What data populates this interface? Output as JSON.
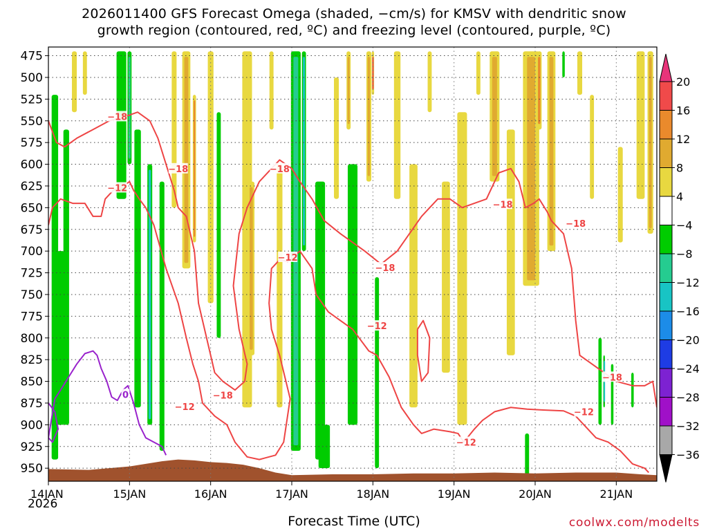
{
  "header": {
    "title_line1": "2026011400 GFS Forecast Omega (shaded, −cm/s) for KMSV with dendritic snow",
    "title_line2": "growth region (contoured, red, ºC) and freezing level (contoured, purple, ºC)"
  },
  "footer": {
    "credit": "coolwx.com/modelts"
  },
  "chart_data": {
    "type": "heatmap",
    "title": "2026011400 GFS Forecast Omega (shaded, −cm/s) for KMSV with dendritic snow growth region (contoured, red, ºC) and freezing level (contoured, purple, ºC)",
    "xlabel": "Forecast Time (UTC)",
    "ylabel": "",
    "x_ticks": [
      "14JAN",
      "15JAN",
      "16JAN",
      "17JAN",
      "18JAN",
      "19JAN",
      "20JAN",
      "21JAN"
    ],
    "x_year": "2026",
    "x_range_days": [
      0,
      7.5
    ],
    "y_ticks": [
      475,
      500,
      525,
      550,
      575,
      600,
      625,
      650,
      675,
      700,
      725,
      750,
      775,
      800,
      825,
      850,
      875,
      900,
      925,
      950
    ],
    "y_range": [
      465,
      965
    ],
    "y_inverted": true,
    "grid": true,
    "colorbar": {
      "labels": [
        "20",
        "16",
        "12",
        "8",
        "4",
        "−4",
        "−8",
        "−12",
        "−16",
        "−20",
        "−24",
        "−28",
        "−32",
        "−36"
      ],
      "levels": [
        20,
        16,
        12,
        8,
        4,
        -4,
        -8,
        -12,
        -16,
        -20,
        -24,
        -28,
        -32,
        -36
      ],
      "colors": [
        "#e8347a",
        "#f04a4a",
        "#ea8a2c",
        "#e0aa30",
        "#e8d840",
        "#ffffff",
        "#00cc00",
        "#25cc90",
        "#18c4c4",
        "#1c8ce8",
        "#1e3ce4",
        "#7d22d2",
        "#a010c8",
        "#a8a8a8",
        "#000000"
      ]
    },
    "omega_fields": [
      {
        "t": 0.32,
        "p_top": 470,
        "p_bot": 540,
        "v": 5,
        "w": 0.06
      },
      {
        "t": 0.45,
        "p_top": 470,
        "p_bot": 520,
        "v": 6,
        "w": 0.05
      },
      {
        "t": 0.15,
        "p_top": 700,
        "p_bot": 900,
        "v": -5,
        "w": 0.1
      },
      {
        "t": 0.08,
        "p_top": 520,
        "p_bot": 940,
        "v": -7,
        "w": 0.08
      },
      {
        "t": 0.22,
        "p_top": 560,
        "p_bot": 900,
        "v": -6,
        "w": 0.07
      },
      {
        "t": 0.9,
        "p_top": 470,
        "p_bot": 640,
        "v": -6,
        "w": 0.12
      },
      {
        "t": 1.0,
        "p_top": 470,
        "p_bot": 600,
        "v": -12,
        "w": 0.05
      },
      {
        "t": 1.1,
        "p_top": 560,
        "p_bot": 880,
        "v": -8,
        "w": 0.08
      },
      {
        "t": 1.25,
        "p_top": 600,
        "p_bot": 900,
        "v": -13,
        "w": 0.06
      },
      {
        "t": 1.4,
        "p_top": 620,
        "p_bot": 930,
        "v": -8,
        "w": 0.06
      },
      {
        "t": 1.55,
        "p_top": 470,
        "p_bot": 650,
        "v": 5,
        "w": 0.06
      },
      {
        "t": 1.7,
        "p_top": 470,
        "p_bot": 720,
        "v": 9,
        "w": 0.1
      },
      {
        "t": 1.8,
        "p_top": 520,
        "p_bot": 690,
        "v": 14,
        "w": 0.04
      },
      {
        "t": 2.0,
        "p_top": 470,
        "p_bot": 760,
        "v": 5,
        "w": 0.07
      },
      {
        "t": 2.1,
        "p_top": 540,
        "p_bot": 800,
        "v": -6,
        "w": 0.05
      },
      {
        "t": 2.45,
        "p_top": 470,
        "p_bot": 880,
        "v": 6,
        "w": 0.12
      },
      {
        "t": 2.5,
        "p_top": 620,
        "p_bot": 820,
        "v": 11,
        "w": 0.08
      },
      {
        "t": 2.75,
        "p_top": 470,
        "p_bot": 560,
        "v": 5,
        "w": 0.05
      },
      {
        "t": 2.85,
        "p_top": 600,
        "p_bot": 880,
        "v": 7,
        "w": 0.07
      },
      {
        "t": 3.05,
        "p_top": 470,
        "p_bot": 930,
        "v": -9,
        "w": 0.12
      },
      {
        "t": 3.15,
        "p_top": 470,
        "p_bot": 700,
        "v": -14,
        "w": 0.05
      },
      {
        "t": 3.35,
        "p_top": 620,
        "p_bot": 940,
        "v": -7,
        "w": 0.12
      },
      {
        "t": 3.55,
        "p_top": 500,
        "p_bot": 640,
        "v": 5,
        "w": 0.06
      },
      {
        "t": 3.7,
        "p_top": 470,
        "p_bot": 560,
        "v": 8,
        "w": 0.05
      },
      {
        "t": 3.75,
        "p_top": 600,
        "p_bot": 900,
        "v": -7,
        "w": 0.12
      },
      {
        "t": 3.95,
        "p_top": 470,
        "p_bot": 620,
        "v": 10,
        "w": 0.06
      },
      {
        "t": 4.0,
        "p_top": 470,
        "p_bot": 520,
        "v": 17,
        "w": 0.03
      },
      {
        "t": 4.05,
        "p_top": 730,
        "p_bot": 950,
        "v": -7,
        "w": 0.05
      },
      {
        "t": 4.3,
        "p_top": 470,
        "p_bot": 640,
        "v": 6,
        "w": 0.08
      },
      {
        "t": 4.5,
        "p_top": 600,
        "p_bot": 880,
        "v": 5,
        "w": 0.1
      },
      {
        "t": 4.7,
        "p_top": 470,
        "p_bot": 540,
        "v": 7,
        "w": 0.05
      },
      {
        "t": 4.9,
        "p_top": 620,
        "p_bot": 840,
        "v": 5,
        "w": 0.1
      },
      {
        "t": 5.1,
        "p_top": 540,
        "p_bot": 900,
        "v": 5,
        "w": 0.12
      },
      {
        "t": 5.3,
        "p_top": 470,
        "p_bot": 520,
        "v": 7,
        "w": 0.05
      },
      {
        "t": 5.5,
        "p_top": 470,
        "p_bot": 620,
        "v": 8,
        "w": 0.12
      },
      {
        "t": 5.7,
        "p_top": 560,
        "p_bot": 820,
        "v": 5,
        "w": 0.1
      },
      {
        "t": 5.95,
        "p_top": 470,
        "p_bot": 740,
        "v": 11,
        "w": 0.2
      },
      {
        "t": 6.05,
        "p_top": 470,
        "p_bot": 560,
        "v": 14,
        "w": 0.06
      },
      {
        "t": 6.2,
        "p_top": 470,
        "p_bot": 700,
        "v": 9,
        "w": 0.1
      },
      {
        "t": 6.35,
        "p_top": 470,
        "p_bot": 500,
        "v": -7,
        "w": 0.03
      },
      {
        "t": 6.55,
        "p_top": 470,
        "p_bot": 520,
        "v": 6,
        "w": 0.06
      },
      {
        "t": 6.7,
        "p_top": 520,
        "p_bot": 640,
        "v": 6,
        "w": 0.05
      },
      {
        "t": 6.8,
        "p_top": 800,
        "p_bot": 900,
        "v": -7,
        "w": 0.04
      },
      {
        "t": 6.85,
        "p_top": 820,
        "p_bot": 880,
        "v": -13,
        "w": 0.02
      },
      {
        "t": 6.95,
        "p_top": 830,
        "p_bot": 900,
        "v": -7,
        "w": 0.03
      },
      {
        "t": 7.05,
        "p_top": 580,
        "p_bot": 690,
        "v": 5,
        "w": 0.06
      },
      {
        "t": 7.2,
        "p_top": 840,
        "p_bot": 880,
        "v": -7,
        "w": 0.03
      },
      {
        "t": 7.3,
        "p_top": 470,
        "p_bot": 640,
        "v": 7,
        "w": 0.1
      },
      {
        "t": 7.42,
        "p_top": 470,
        "p_bot": 680,
        "v": 10,
        "w": 0.07
      },
      {
        "t": 5.9,
        "p_top": 910,
        "p_bot": 960,
        "v": -7,
        "w": 0.05
      },
      {
        "t": 3.4,
        "p_top": 900,
        "p_bot": 950,
        "v": -6,
        "w": 0.14
      }
    ],
    "terrain": {
      "name": "surface",
      "color": "#a0522d",
      "times": [
        0.0,
        0.5,
        1.0,
        1.2,
        1.4,
        1.6,
        1.8,
        2.0,
        2.2,
        2.4,
        2.6,
        2.8,
        3.0,
        3.5,
        4.0,
        4.5,
        5.0,
        5.5,
        6.0,
        6.5,
        7.0,
        7.3,
        7.5
      ],
      "pressures": [
        951,
        952,
        948,
        945,
        942,
        940,
        941,
        943,
        944,
        946,
        950,
        955,
        958,
        957,
        957,
        956,
        956,
        955,
        956,
        955,
        955,
        957,
        958
      ]
    },
    "contours": [
      {
        "name": "dendritic -12C",
        "color": "#ee4444",
        "label": "−12",
        "points": [
          [
            0.0,
            670
          ],
          [
            0.05,
            650
          ],
          [
            0.15,
            640
          ],
          [
            0.3,
            645
          ],
          [
            0.45,
            645
          ],
          [
            0.55,
            660
          ],
          [
            0.65,
            660
          ],
          [
            0.7,
            640
          ],
          [
            0.8,
            630
          ],
          [
            0.92,
            625
          ],
          [
            1.0,
            620
          ],
          [
            1.05,
            630
          ],
          [
            1.12,
            640
          ],
          [
            1.2,
            650
          ],
          [
            1.3,
            670
          ],
          [
            1.45,
            720
          ],
          [
            1.6,
            760
          ],
          [
            1.7,
            800
          ],
          [
            1.78,
            830
          ],
          [
            1.85,
            850
          ],
          [
            1.9,
            875
          ],
          [
            1.95,
            880
          ],
          [
            2.05,
            890
          ],
          [
            2.2,
            900
          ],
          [
            2.3,
            920
          ],
          [
            2.45,
            937
          ],
          [
            2.6,
            940
          ],
          [
            2.8,
            935
          ],
          [
            2.9,
            920
          ],
          [
            2.98,
            870
          ],
          [
            2.85,
            820
          ],
          [
            2.75,
            790
          ],
          [
            2.72,
            760
          ],
          [
            2.75,
            720
          ],
          [
            2.85,
            710
          ],
          [
            2.95,
            712
          ],
          [
            3.1,
            700
          ],
          [
            3.25,
            720
          ],
          [
            3.3,
            750
          ],
          [
            3.45,
            770
          ],
          [
            3.6,
            780
          ],
          [
            3.75,
            790
          ],
          [
            3.95,
            815
          ],
          [
            4.05,
            820
          ],
          [
            4.2,
            845
          ],
          [
            4.35,
            880
          ],
          [
            4.5,
            900
          ],
          [
            4.6,
            910
          ],
          [
            4.75,
            905
          ],
          [
            4.95,
            908
          ],
          [
            5.05,
            910
          ],
          [
            5.12,
            920
          ],
          [
            5.25,
            905
          ],
          [
            5.35,
            895
          ],
          [
            5.5,
            885
          ],
          [
            5.7,
            880
          ],
          [
            5.9,
            882
          ],
          [
            6.1,
            883
          ],
          [
            6.35,
            884
          ],
          [
            6.5,
            890
          ],
          [
            6.6,
            900
          ],
          [
            6.75,
            915
          ],
          [
            6.9,
            920
          ],
          [
            7.05,
            930
          ],
          [
            7.2,
            945
          ],
          [
            7.35,
            950
          ],
          [
            7.4,
            955
          ]
        ]
      },
      {
        "name": "dendritic -18C",
        "color": "#ee4444",
        "label": "−18",
        "points": [
          [
            0.0,
            550
          ],
          [
            0.1,
            575
          ],
          [
            0.2,
            580
          ],
          [
            0.35,
            570
          ],
          [
            0.55,
            560
          ],
          [
            0.75,
            550
          ],
          [
            0.95,
            545
          ],
          [
            1.1,
            540
          ],
          [
            1.25,
            550
          ],
          [
            1.35,
            570
          ],
          [
            1.45,
            600
          ],
          [
            1.55,
            630
          ],
          [
            1.6,
            650
          ],
          [
            1.7,
            660
          ],
          [
            1.8,
            700
          ],
          [
            1.85,
            760
          ],
          [
            1.95,
            800
          ],
          [
            2.05,
            840
          ],
          [
            2.15,
            850
          ],
          [
            2.3,
            860
          ],
          [
            2.42,
            850
          ],
          [
            2.45,
            830
          ],
          [
            2.35,
            790
          ],
          [
            2.28,
            740
          ],
          [
            2.35,
            680
          ],
          [
            2.45,
            650
          ],
          [
            2.6,
            620
          ],
          [
            2.75,
            605
          ],
          [
            2.85,
            595
          ],
          [
            3.0,
            605
          ],
          [
            3.1,
            620
          ],
          [
            3.25,
            640
          ],
          [
            3.4,
            665
          ],
          [
            3.6,
            680
          ],
          [
            3.75,
            690
          ],
          [
            3.9,
            700
          ],
          [
            4.1,
            715
          ],
          [
            4.3,
            700
          ],
          [
            4.45,
            680
          ],
          [
            4.6,
            660
          ],
          [
            4.8,
            640
          ],
          [
            4.95,
            640
          ],
          [
            5.1,
            650
          ],
          [
            5.25,
            645
          ],
          [
            5.4,
            640
          ],
          [
            5.55,
            610
          ],
          [
            5.7,
            605
          ],
          [
            5.8,
            620
          ],
          [
            5.88,
            650
          ],
          [
            5.98,
            645
          ],
          [
            6.05,
            640
          ],
          [
            6.15,
            655
          ],
          [
            6.2,
            665
          ],
          [
            6.35,
            680
          ],
          [
            6.45,
            720
          ],
          [
            6.5,
            780
          ],
          [
            6.55,
            820
          ],
          [
            6.7,
            830
          ],
          [
            6.85,
            840
          ],
          [
            7.0,
            850
          ],
          [
            7.2,
            855
          ],
          [
            7.35,
            855
          ],
          [
            7.45,
            850
          ],
          [
            7.5,
            880
          ]
        ]
      },
      {
        "name": "dendritic -18C (small)",
        "color": "#ee4444",
        "label": "",
        "points": [
          [
            4.55,
            790
          ],
          [
            4.62,
            780
          ],
          [
            4.7,
            800
          ],
          [
            4.68,
            840
          ],
          [
            4.6,
            850
          ],
          [
            4.55,
            820
          ],
          [
            4.55,
            790
          ]
        ]
      },
      {
        "name": "freezing level 0C",
        "color": "#9922cc",
        "label": "0",
        "points": [
          [
            0.0,
            875
          ],
          [
            0.08,
            885
          ],
          [
            0.12,
            905
          ],
          [
            0.05,
            920
          ],
          [
            0.0,
            915
          ],
          [
            0.08,
            870
          ],
          [
            0.15,
            860
          ],
          [
            0.25,
            845
          ],
          [
            0.35,
            830
          ],
          [
            0.45,
            818
          ],
          [
            0.55,
            815
          ],
          [
            0.6,
            820
          ],
          [
            0.65,
            835
          ],
          [
            0.72,
            850
          ],
          [
            0.78,
            868
          ],
          [
            0.85,
            872
          ],
          [
            0.92,
            860
          ],
          [
            0.98,
            855
          ],
          [
            1.05,
            875
          ],
          [
            1.12,
            900
          ],
          [
            1.2,
            915
          ],
          [
            1.3,
            920
          ],
          [
            1.4,
            925
          ],
          [
            1.45,
            935
          ]
        ]
      }
    ],
    "contour_labels": [
      {
        "text": "−18",
        "t": 0.85,
        "p": 545
      },
      {
        "text": "−12",
        "t": 0.85,
        "p": 627
      },
      {
        "text": "−18",
        "t": 1.6,
        "p": 605
      },
      {
        "text": "−12",
        "t": 1.68,
        "p": 879
      },
      {
        "text": "−18",
        "t": 2.15,
        "p": 866
      },
      {
        "text": "−18",
        "t": 2.85,
        "p": 605
      },
      {
        "text": "−12",
        "t": 2.95,
        "p": 707
      },
      {
        "text": "−18",
        "t": 4.15,
        "p": 719
      },
      {
        "text": "−12",
        "t": 4.05,
        "p": 786
      },
      {
        "text": "−12",
        "t": 5.15,
        "p": 920
      },
      {
        "text": "−18",
        "t": 5.6,
        "p": 646
      },
      {
        "text": "−18",
        "t": 6.5,
        "p": 668
      },
      {
        "text": "−12",
        "t": 6.6,
        "p": 885
      },
      {
        "text": "−18",
        "t": 6.95,
        "p": 845
      },
      {
        "text": "0",
        "t": 0.95,
        "p": 865
      }
    ]
  }
}
